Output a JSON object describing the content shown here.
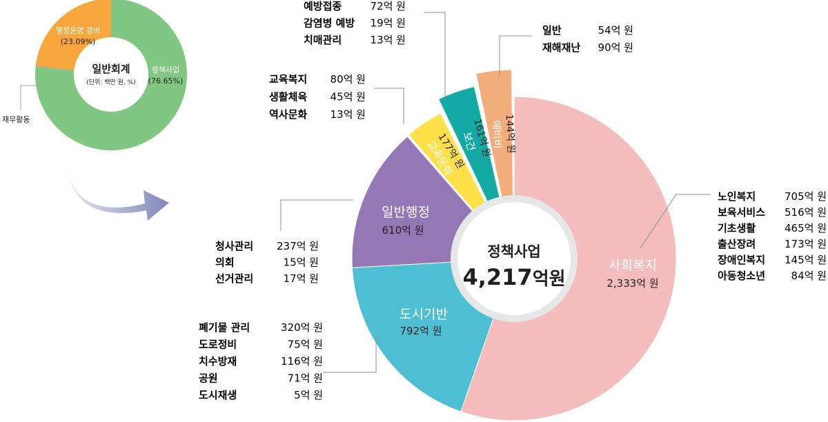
{
  "chart_data": [
    {
      "type": "pie",
      "title": "일반회계",
      "subtitle": "(단위: 백만 원, %)",
      "slices": [
        {
          "label": "정책사업",
          "percent_label": "(76.65%)",
          "value": 76.65,
          "color": "#82c683"
        },
        {
          "label": "행정운영 경비",
          "percent_label": "(23.09%)",
          "value": 23.09,
          "color": "#f8a63e"
        },
        {
          "label": "재무활동",
          "percent_label": "",
          "value": 0.26,
          "color": "#c0a27c"
        }
      ]
    },
    {
      "type": "pie",
      "title": "정책사업",
      "total_number": "4,217",
      "total_unit": "억원",
      "slices": [
        {
          "label": "사회복지",
          "amount": "2,333억 원",
          "value": 2333,
          "color": "#f4bdbd",
          "details": [
            {
              "name": "노인복지",
              "amount": "705억 원"
            },
            {
              "name": "보육서비스",
              "amount": "516억 원"
            },
            {
              "name": "기초생활",
              "amount": "465억 원"
            },
            {
              "name": "출산장려",
              "amount": "173억 원"
            },
            {
              "name": "장애인복지",
              "amount": "145억 원"
            },
            {
              "name": "아동청소년",
              "amount": "84억 원"
            }
          ]
        },
        {
          "label": "도시기반",
          "amount": "792억 원",
          "value": 792,
          "color": "#4ebfd2",
          "details": [
            {
              "name": "폐기물 관리",
              "amount": "320억 원"
            },
            {
              "name": "도로정비",
              "amount": "75억 원"
            },
            {
              "name": "치수방재",
              "amount": "116억 원"
            },
            {
              "name": "공원",
              "amount": "71억 원"
            },
            {
              "name": "도시재생",
              "amount": "5억 원"
            }
          ]
        },
        {
          "label": "일반행정",
          "amount": "610억 원",
          "value": 610,
          "color": "#9478b5",
          "details": [
            {
              "name": "청사관리",
              "amount": "237억 원"
            },
            {
              "name": "의회",
              "amount": "15억 원"
            },
            {
              "name": "선거관리",
              "amount": "17억 원"
            }
          ]
        },
        {
          "label": "교육문화",
          "amount": "177억 원",
          "value": 177,
          "color": "#fde04a",
          "details": [
            {
              "name": "교육복지",
              "amount": "80억 원"
            },
            {
              "name": "생활체육",
              "amount": "45억 원"
            },
            {
              "name": "역사문화",
              "amount": "13억 원"
            }
          ]
        },
        {
          "label": "보건",
          "amount": "161억 원",
          "value": 161,
          "color": "#14aaa3",
          "details": [
            {
              "name": "예방접종",
              "amount": "72억 원"
            },
            {
              "name": "감염병 예방",
              "amount": "19억 원"
            },
            {
              "name": "치매관리",
              "amount": "13억 원"
            }
          ]
        },
        {
          "label": "예비비",
          "amount": "144억 원",
          "value": 144,
          "color": "#f2ad7c",
          "details": [
            {
              "name": "일반",
              "amount": "54억 원"
            },
            {
              "name": "재해재난",
              "amount": "90억 원"
            }
          ]
        }
      ]
    }
  ]
}
